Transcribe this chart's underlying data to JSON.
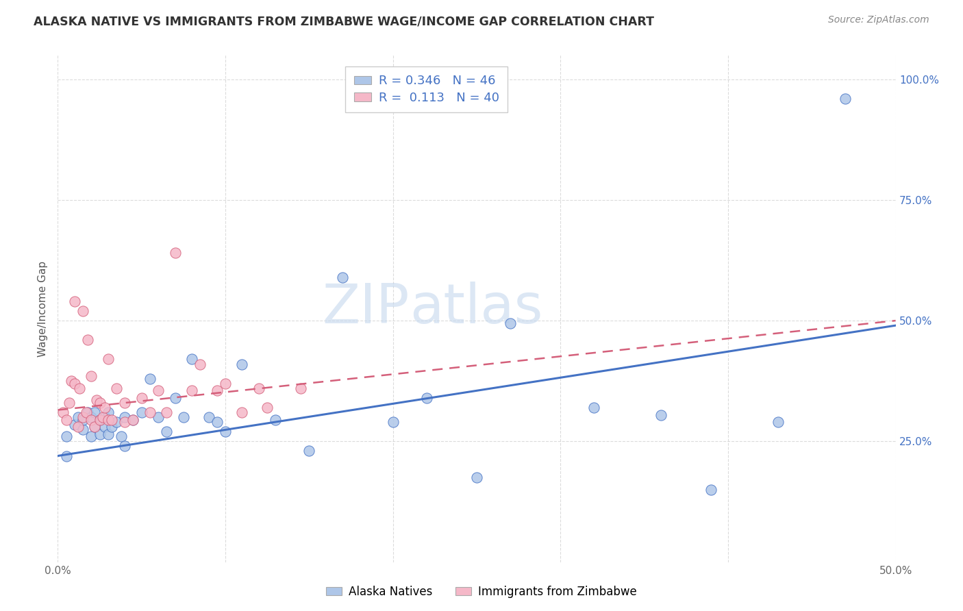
{
  "title": "ALASKA NATIVE VS IMMIGRANTS FROM ZIMBABWE WAGE/INCOME GAP CORRELATION CHART",
  "source": "Source: ZipAtlas.com",
  "ylabel": "Wage/Income Gap",
  "xlim": [
    0.0,
    0.5
  ],
  "ylim": [
    0.0,
    1.05
  ],
  "xtick_labels": [
    "0.0%",
    "",
    "",
    "",
    "",
    "50.0%"
  ],
  "xtick_vals": [
    0.0,
    0.1,
    0.2,
    0.3,
    0.4,
    0.5
  ],
  "ytick_labels": [
    "25.0%",
    "50.0%",
    "75.0%",
    "100.0%"
  ],
  "ytick_vals": [
    0.25,
    0.5,
    0.75,
    1.0
  ],
  "blue_color": "#aec6e8",
  "pink_color": "#f5b8c8",
  "blue_line_color": "#4472c4",
  "pink_line_color": "#d45f7a",
  "watermark_zip": "ZIP",
  "watermark_atlas": "atlas",
  "legend_R_blue": "0.346",
  "legend_N_blue": "46",
  "legend_R_pink": "0.113",
  "legend_N_pink": "40",
  "blue_scatter_x": [
    0.005,
    0.005,
    0.01,
    0.012,
    0.015,
    0.015,
    0.018,
    0.02,
    0.02,
    0.022,
    0.022,
    0.025,
    0.025,
    0.028,
    0.028,
    0.03,
    0.03,
    0.032,
    0.035,
    0.038,
    0.04,
    0.04,
    0.045,
    0.05,
    0.055,
    0.06,
    0.065,
    0.07,
    0.075,
    0.08,
    0.09,
    0.095,
    0.1,
    0.11,
    0.13,
    0.15,
    0.17,
    0.2,
    0.22,
    0.25,
    0.27,
    0.32,
    0.36,
    0.39,
    0.43,
    0.47
  ],
  "blue_scatter_y": [
    0.22,
    0.26,
    0.285,
    0.3,
    0.275,
    0.295,
    0.31,
    0.26,
    0.3,
    0.28,
    0.31,
    0.265,
    0.295,
    0.28,
    0.3,
    0.265,
    0.31,
    0.28,
    0.29,
    0.26,
    0.3,
    0.24,
    0.295,
    0.31,
    0.38,
    0.3,
    0.27,
    0.34,
    0.3,
    0.42,
    0.3,
    0.29,
    0.27,
    0.41,
    0.295,
    0.23,
    0.59,
    0.29,
    0.34,
    0.175,
    0.495,
    0.32,
    0.305,
    0.15,
    0.29,
    0.96
  ],
  "pink_scatter_x": [
    0.003,
    0.005,
    0.007,
    0.008,
    0.01,
    0.01,
    0.012,
    0.013,
    0.015,
    0.015,
    0.017,
    0.018,
    0.02,
    0.02,
    0.022,
    0.023,
    0.025,
    0.025,
    0.027,
    0.028,
    0.03,
    0.03,
    0.032,
    0.035,
    0.04,
    0.04,
    0.045,
    0.05,
    0.055,
    0.06,
    0.065,
    0.07,
    0.08,
    0.085,
    0.095,
    0.1,
    0.11,
    0.12,
    0.125,
    0.145
  ],
  "pink_scatter_y": [
    0.31,
    0.295,
    0.33,
    0.375,
    0.37,
    0.54,
    0.28,
    0.36,
    0.3,
    0.52,
    0.31,
    0.46,
    0.295,
    0.385,
    0.28,
    0.335,
    0.295,
    0.33,
    0.3,
    0.32,
    0.295,
    0.42,
    0.295,
    0.36,
    0.29,
    0.33,
    0.295,
    0.34,
    0.31,
    0.355,
    0.31,
    0.64,
    0.355,
    0.41,
    0.355,
    0.37,
    0.31,
    0.36,
    0.32,
    0.36
  ],
  "blue_trend_x": [
    0.0,
    0.5
  ],
  "blue_trend_y": [
    0.22,
    0.49
  ],
  "pink_trend_x": [
    0.0,
    0.5
  ],
  "pink_trend_y": [
    0.315,
    0.5
  ],
  "background_color": "#ffffff",
  "grid_color": "#cccccc"
}
